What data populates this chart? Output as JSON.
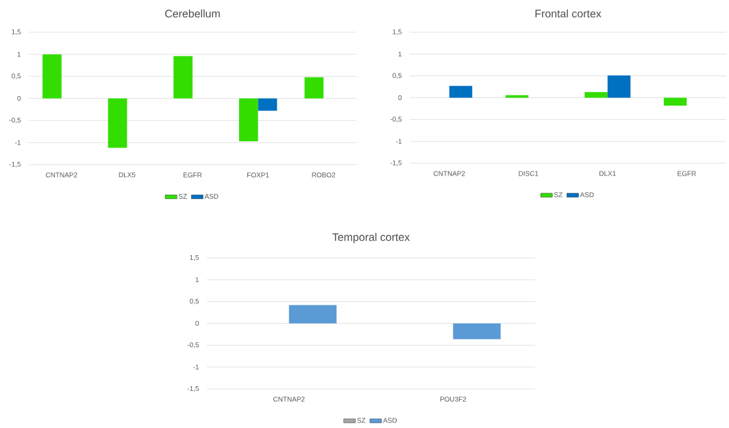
{
  "chart_data": [
    {
      "type": "bar",
      "title": "Cerebellum",
      "categories": [
        "CNTNAP2",
        "DLX5",
        "EGFR",
        "FOXP1",
        "ROBO2"
      ],
      "series": [
        {
          "name": "SZ",
          "color": "#33dd00",
          "values": [
            1,
            -1.12,
            0.96,
            -0.97,
            0.48
          ]
        },
        {
          "name": "ASD",
          "color": "#0070c0",
          "values": [
            null,
            null,
            null,
            -0.28,
            null
          ]
        }
      ],
      "ylim": [
        -1.5,
        1.5
      ],
      "yticks": [
        {
          "value": -1.5,
          "label": "-1,5"
        },
        -1,
        {
          "value": -0.5,
          "label": "-0,5"
        },
        0,
        {
          "value": 0.5,
          "label": "0,5"
        },
        1,
        {
          "value": 1.5,
          "label": "1,5"
        }
      ],
      "grid": "y",
      "legend": "bottom"
    },
    {
      "type": "bar",
      "title": "Frontal cortex",
      "categories": [
        "CNTNAP2",
        "DISC1",
        "DLX1",
        "EGFR"
      ],
      "series": [
        {
          "name": "SZ",
          "color": "#33dd00",
          "values": [
            null,
            0.06,
            0.13,
            -0.18
          ]
        },
        {
          "name": "ASD",
          "color": "#0070c0",
          "values": [
            0.27,
            null,
            0.51,
            null
          ]
        }
      ],
      "ylim": [
        -1.5,
        1.5
      ],
      "yticks": [
        {
          "value": -1.5,
          "label": "-1,5"
        },
        -1,
        {
          "value": -0.5,
          "label": "-0,5"
        },
        0,
        {
          "value": 0.5,
          "label": "0,5"
        },
        1,
        {
          "value": 1.5,
          "label": "1,5"
        }
      ],
      "grid": "y",
      "legend": "bottom"
    },
    {
      "type": "bar",
      "title": "Temporal cortex",
      "categories": [
        "CNTNAP2",
        "POU3F2"
      ],
      "series": [
        {
          "name": "SZ",
          "color": "#a5a5a5",
          "values": [
            null,
            null
          ]
        },
        {
          "name": "ASD",
          "color": "#5b9bd5",
          "values": [
            0.42,
            -0.36
          ]
        }
      ],
      "ylim": [
        -1.5,
        1.5
      ],
      "yticks": [
        {
          "value": -1.5,
          "label": "-1,5"
        },
        -1,
        {
          "value": -0.5,
          "label": "-0,5"
        },
        0,
        {
          "value": 0.5,
          "label": "0,5"
        },
        1,
        {
          "value": 1.5,
          "label": "1,5"
        }
      ],
      "grid": "y",
      "legend": "bottom"
    }
  ]
}
